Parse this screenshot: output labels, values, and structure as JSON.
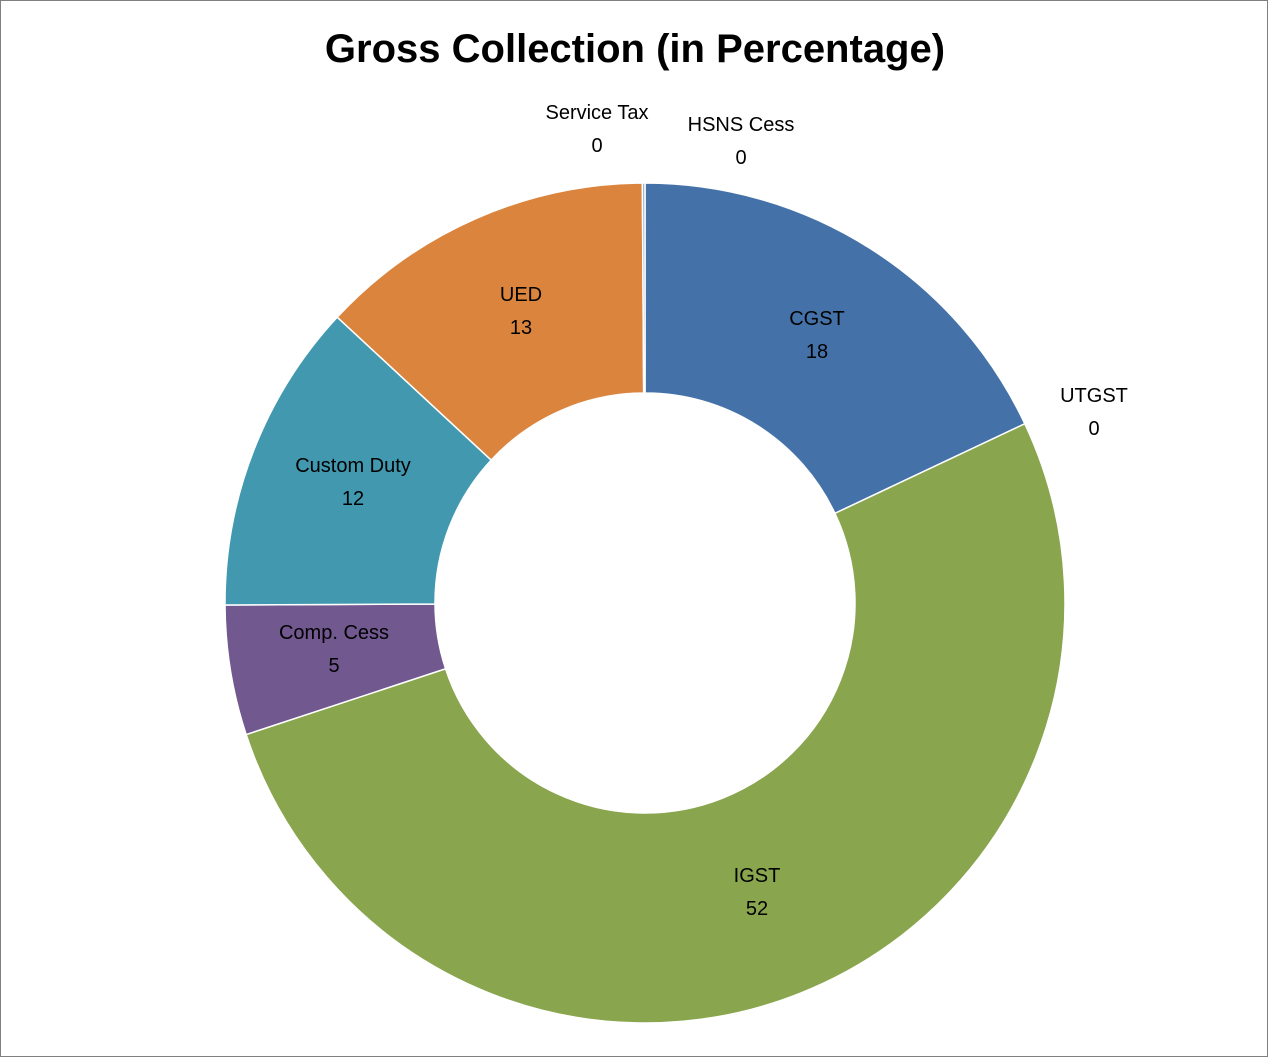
{
  "chart_data": {
    "type": "donut",
    "title": "Gross Collection (in Percentage)",
    "series": [
      {
        "name": "CGST",
        "value": 18,
        "display": "18",
        "color": "#4472a8"
      },
      {
        "name": "UTGST",
        "value": 0,
        "display": "0",
        "color": "#a04441"
      },
      {
        "name": "IGST",
        "value": 52,
        "display": "52",
        "color": "#89a54e"
      },
      {
        "name": "Comp. Cess",
        "value": 5,
        "display": "5",
        "color": "#71588f"
      },
      {
        "name": "Custom Duty",
        "value": 12,
        "display": "12",
        "color": "#4198af"
      },
      {
        "name": "UED",
        "value": 13,
        "display": "13",
        "color": "#db843d"
      },
      {
        "name": "Service Tax",
        "value": 0.1,
        "display": "0",
        "color": "#93a9cf"
      },
      {
        "name": "HSNS Cess",
        "value": 0,
        "display": "0",
        "color": "#d19392"
      }
    ],
    "legend": "none",
    "data_labels": "category name and value"
  }
}
